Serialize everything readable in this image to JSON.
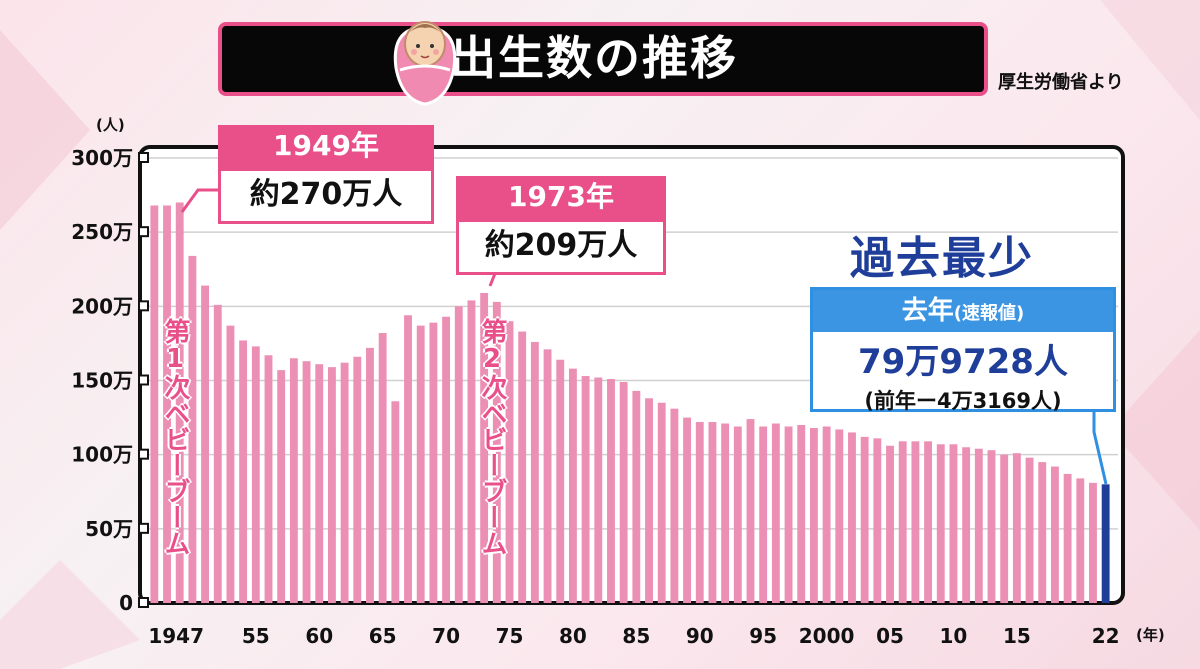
{
  "title": "出生数の推移",
  "source": "厚生労働省より",
  "colors": {
    "bar": "#ec8fb4",
    "latest_bar": "#1f3e9a",
    "accent_pink": "#e9508a",
    "accent_blue": "#3b95e3",
    "title_bg": "#070707"
  },
  "icons": {
    "title_icon": "baby-icon"
  },
  "annotations": {
    "peak1949": {
      "year": "1949年",
      "value": "約270万人"
    },
    "peak1973": {
      "year": "1973年",
      "value": "約209万人"
    },
    "boom1": "第1次ベビーブーム",
    "boom2": "第2次ベビーブーム",
    "record": "過去最少",
    "latest": {
      "label": "去年",
      "label_note": "(速報値)",
      "value": "79万9728人",
      "diff": "(前年ー4万3169人)"
    }
  },
  "chart_data": {
    "type": "bar",
    "y_unit": "(人)",
    "x_unit": "(年)",
    "ylim": [
      0,
      3000000
    ],
    "y_ticks": [
      "0",
      "50万",
      "100万",
      "150万",
      "200万",
      "250万",
      "300万"
    ],
    "y_tick_values": [
      0,
      500000,
      1000000,
      1500000,
      2000000,
      2500000,
      3000000
    ],
    "x_tick_labels": [
      {
        "year": 1947,
        "label": "1947"
      },
      {
        "year": 1955,
        "label": "55"
      },
      {
        "year": 1960,
        "label": "60"
      },
      {
        "year": 1965,
        "label": "65"
      },
      {
        "year": 1970,
        "label": "70"
      },
      {
        "year": 1975,
        "label": "75"
      },
      {
        "year": 1980,
        "label": "80"
      },
      {
        "year": 1985,
        "label": "85"
      },
      {
        "year": 1990,
        "label": "90"
      },
      {
        "year": 1995,
        "label": "95"
      },
      {
        "year": 2000,
        "label": "2000"
      },
      {
        "year": 2005,
        "label": "05"
      },
      {
        "year": 2010,
        "label": "10"
      },
      {
        "year": 2015,
        "label": "15"
      },
      {
        "year": 2022,
        "label": "22"
      }
    ],
    "grid": true,
    "x": [
      1947,
      1948,
      1949,
      1950,
      1951,
      1952,
      1953,
      1954,
      1955,
      1956,
      1957,
      1958,
      1959,
      1960,
      1961,
      1962,
      1963,
      1964,
      1965,
      1966,
      1967,
      1968,
      1969,
      1970,
      1971,
      1972,
      1973,
      1974,
      1975,
      1976,
      1977,
      1978,
      1979,
      1980,
      1981,
      1982,
      1983,
      1984,
      1985,
      1986,
      1987,
      1988,
      1989,
      1990,
      1991,
      1992,
      1993,
      1994,
      1995,
      1996,
      1997,
      1998,
      1999,
      2000,
      2001,
      2002,
      2003,
      2004,
      2005,
      2006,
      2007,
      2008,
      2009,
      2010,
      2011,
      2012,
      2013,
      2014,
      2015,
      2016,
      2017,
      2018,
      2019,
      2020,
      2021,
      2022
    ],
    "values": [
      2680000,
      2680000,
      2700000,
      2340000,
      2140000,
      2010000,
      1870000,
      1770000,
      1730000,
      1670000,
      1570000,
      1650000,
      1630000,
      1610000,
      1590000,
      1620000,
      1660000,
      1720000,
      1820000,
      1360000,
      1940000,
      1870000,
      1890000,
      1930000,
      2000000,
      2040000,
      2090000,
      2030000,
      1900000,
      1830000,
      1760000,
      1710000,
      1640000,
      1580000,
      1530000,
      1520000,
      1510000,
      1490000,
      1430000,
      1380000,
      1350000,
      1310000,
      1250000,
      1220000,
      1220000,
      1210000,
      1190000,
      1240000,
      1190000,
      1210000,
      1190000,
      1200000,
      1180000,
      1190000,
      1170000,
      1150000,
      1120000,
      1110000,
      1060000,
      1090000,
      1090000,
      1090000,
      1070000,
      1070000,
      1050000,
      1040000,
      1030000,
      1000000,
      1010000,
      980000,
      950000,
      920000,
      870000,
      840000,
      810000,
      800000
    ],
    "highlight_last": true
  }
}
